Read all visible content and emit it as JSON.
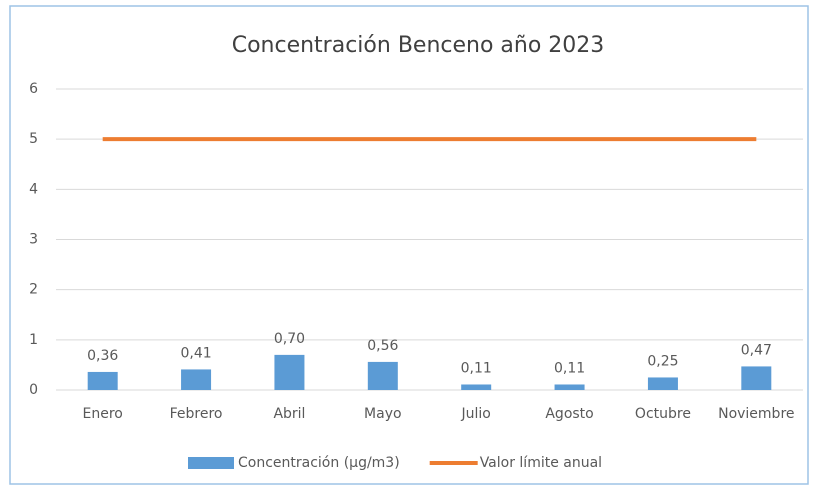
{
  "chart_data": {
    "type": "bar",
    "title": "Concentración Benceno año 2023",
    "categories": [
      "Enero",
      "Febrero",
      "Abril",
      "Mayo",
      "Julio",
      "Agosto",
      "Octubre",
      "Noviembre"
    ],
    "series": [
      {
        "name": "Concentración (µg/m3)",
        "type": "bar",
        "color": "#5b9bd5",
        "values": [
          0.36,
          0.41,
          0.7,
          0.56,
          0.11,
          0.11,
          0.25,
          0.47
        ],
        "value_labels": [
          "0,36",
          "0,41",
          "0,70",
          "0,56",
          "0,11",
          "0,11",
          "0,25",
          "0,47"
        ]
      },
      {
        "name": "Valor límite anual",
        "type": "line",
        "color": "#ed7d31",
        "values": [
          5,
          5,
          5,
          5,
          5,
          5,
          5,
          5
        ]
      }
    ],
    "ylim": [
      0,
      6
    ],
    "yticks": [
      0,
      1,
      2,
      3,
      4,
      5,
      6
    ],
    "grid": true,
    "legend": "bottom"
  }
}
